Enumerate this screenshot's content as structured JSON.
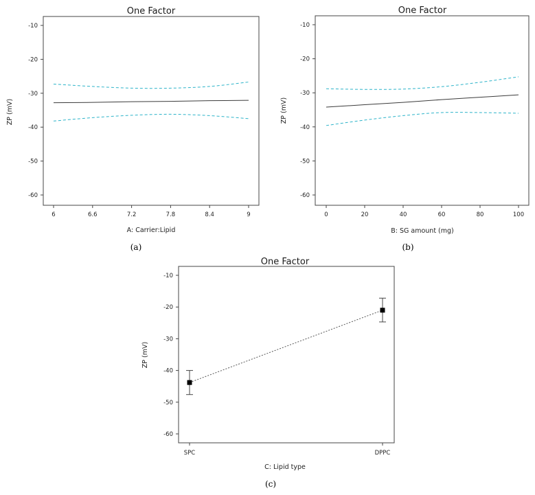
{
  "colors": {
    "fit_line": "#3a3a3a",
    "ci_band": "#2bb3c9",
    "point": "#000000",
    "error_bar": "#444444",
    "frame": "#444444"
  },
  "chart_data": [
    {
      "type": "line",
      "panel_label": "(a)",
      "title": "One Factor",
      "xlabel": "A: Carrier:Lipid",
      "ylabel": "ZP (mV)",
      "xlim": [
        6,
        9
      ],
      "ylim": [
        -60,
        -10
      ],
      "xticks": [
        "6",
        "6.6",
        "7.2",
        "7.8",
        "8.4",
        "9"
      ],
      "yticks": [
        "-10",
        "-20",
        "-30",
        "-40",
        "-50",
        "-60"
      ],
      "x": [
        6,
        6.6,
        7.2,
        7.8,
        8.4,
        9
      ],
      "series": [
        {
          "role": "fit",
          "values": [
            -32.8,
            -32.7,
            -32.5,
            -32.4,
            -32.2,
            -32.1
          ]
        },
        {
          "role": "ci_upper",
          "values": [
            -27.3,
            -28.0,
            -28.5,
            -28.5,
            -28.0,
            -26.7
          ]
        },
        {
          "role": "ci_lower",
          "values": [
            -38.2,
            -37.2,
            -36.5,
            -36.2,
            -36.6,
            -37.5
          ]
        }
      ],
      "grid": false
    },
    {
      "type": "line",
      "panel_label": "(b)",
      "title": "One Factor",
      "xlabel": "B: SG amount (mg)",
      "ylabel": "ZP (mV)",
      "xlim": [
        0,
        100
      ],
      "ylim": [
        -60,
        -10
      ],
      "xticks": [
        "0",
        "20",
        "40",
        "60",
        "80",
        "100"
      ],
      "yticks": [
        "-10",
        "-20",
        "-30",
        "-40",
        "-50",
        "-60"
      ],
      "x": [
        0,
        20,
        40,
        60,
        80,
        100
      ],
      "series": [
        {
          "role": "fit",
          "values": [
            -34.2,
            -33.5,
            -32.8,
            -32.0,
            -31.3,
            -30.6
          ]
        },
        {
          "role": "ci_upper",
          "values": [
            -28.8,
            -29.0,
            -28.9,
            -28.2,
            -26.9,
            -25.3
          ]
        },
        {
          "role": "ci_lower",
          "values": [
            -39.6,
            -38.0,
            -36.7,
            -35.8,
            -35.8,
            -36.0
          ]
        }
      ],
      "grid": false
    },
    {
      "type": "scatter",
      "panel_label": "(c)",
      "title": "One Factor",
      "xlabel": "C: Lipid type",
      "ylabel": "ZP (mV)",
      "categories": [
        "SPC",
        "DPPC"
      ],
      "ylim": [
        -60,
        -10
      ],
      "yticks": [
        "-10",
        "-20",
        "-30",
        "-40",
        "-50",
        "-60"
      ],
      "series": [
        {
          "values": [
            -43.8,
            -21.0
          ],
          "error_low": [
            -47.6,
            -24.7
          ],
          "error_high": [
            -40.0,
            -17.2
          ]
        }
      ],
      "connector": "dotted",
      "grid": false
    }
  ]
}
